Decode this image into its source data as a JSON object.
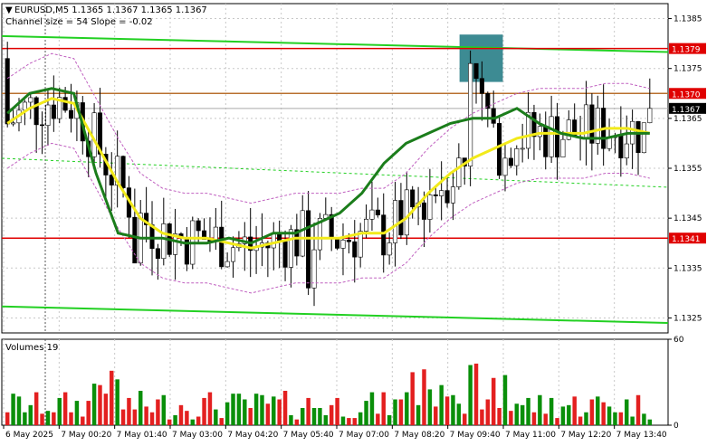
{
  "header": {
    "symbol_line": "EURUSD,M5  1.1365 1.1367 1.1365 1.1367",
    "channel_line": "Channel size = 54 Slope = -0.02"
  },
  "volume_panel": {
    "label": "Volumes 19"
  },
  "colors": {
    "bull": "#0a8f0a",
    "bear": "#e32020",
    "ema_fast": "#1b7d1b",
    "ema_slow": "#f2ea1a",
    "channel": "#22d022",
    "envelope": "#c060c0",
    "level_red": "#e00000",
    "level_brown": "#b8702f",
    "highlight_box": "#3d8b93"
  },
  "chart_data": [
    {
      "type": "candlestick",
      "title": "EURUSD,M5",
      "ylim": [
        1.1322,
        1.1388
      ],
      "y_ticks": [
        "1.1385",
        "1.1375",
        "1.1365",
        "1.1355",
        "1.1345",
        "1.1335",
        "1.1325"
      ],
      "y_tick_values": [
        1.1385,
        1.1375,
        1.1365,
        1.1355,
        1.1345,
        1.1335,
        1.1325
      ],
      "x_tick_labels": [
        "6 May 2025",
        "7 May 00:20",
        "7 May 01:40",
        "7 May 03:00",
        "7 May 04:20",
        "7 May 05:40",
        "7 May 07:00",
        "7 May 08:20",
        "7 May 09:40",
        "7 May 11:00",
        "7 May 12:20",
        "7 May 13:40"
      ],
      "price_labels": [
        {
          "text": "1.1379",
          "value": 1.1379,
          "bg": "#e00000",
          "fg": "#ffffff"
        },
        {
          "text": "1.1370",
          "value": 1.137,
          "bg": "#e00000",
          "fg": "#ffffff"
        },
        {
          "text": "1.1367",
          "value": 1.1367,
          "bg": "#000000",
          "fg": "#ffffff"
        },
        {
          "text": "1.1341",
          "value": 1.1341,
          "bg": "#e00000",
          "fg": "#ffffff"
        }
      ],
      "levels": [
        {
          "value": 1.1379,
          "color": "#e00000",
          "style": "solid"
        },
        {
          "value": 1.137,
          "color": "#b8702f",
          "style": "solid"
        },
        {
          "value": 1.1341,
          "color": "#e00000",
          "style": "solid"
        },
        {
          "value": 1.1367,
          "color": "#aaaaaa",
          "style": "solid"
        }
      ],
      "channel_lines": [
        {
          "x0": 0.0,
          "y0": 1.13815,
          "x1": 1.0,
          "y1": 1.13783,
          "style": "solid"
        },
        {
          "x0": 0.0,
          "y0": 1.1357,
          "x1": 1.0,
          "y1": 1.13512,
          "style": "dashed"
        },
        {
          "x0": 0.0,
          "y0": 1.13273,
          "x1": 1.0,
          "y1": 1.1324,
          "style": "solid"
        }
      ],
      "highlight_region": {
        "x_from": 0.687,
        "x_to": 0.752,
        "y_low": 1.13723,
        "y_high": 1.13818
      },
      "ema_slow": [
        1.1364,
        1.1367,
        1.1369,
        1.1368,
        1.136,
        1.1352,
        1.1345,
        1.1342,
        1.1341,
        1.1341,
        1.134,
        1.1339,
        1.134,
        1.1341,
        1.1341,
        1.1341,
        1.1342,
        1.1342,
        1.1345,
        1.135,
        1.1354,
        1.1357,
        1.1359,
        1.1361,
        1.1362,
        1.1362,
        1.1362,
        1.1363,
        1.1363,
        1.1362
      ],
      "ema_fast": [
        1.1366,
        1.137,
        1.1371,
        1.137,
        1.1354,
        1.1342,
        1.1341,
        1.1341,
        1.134,
        1.134,
        1.1341,
        1.134,
        1.1342,
        1.1342,
        1.1344,
        1.1346,
        1.135,
        1.1356,
        1.136,
        1.1362,
        1.1364,
        1.1365,
        1.1365,
        1.1367,
        1.1364,
        1.1362,
        1.1361,
        1.1361,
        1.1362,
        1.1362
      ],
      "candles_summary": {
        "count": 112,
        "first_open": 1.1377,
        "last_close": 1.1367
      }
    },
    {
      "type": "bar",
      "title": "Volumes 19",
      "ylim": [
        0,
        60
      ],
      "y_ticks": [
        "60",
        "0"
      ],
      "y_tick_values": [
        60,
        0
      ]
    }
  ]
}
